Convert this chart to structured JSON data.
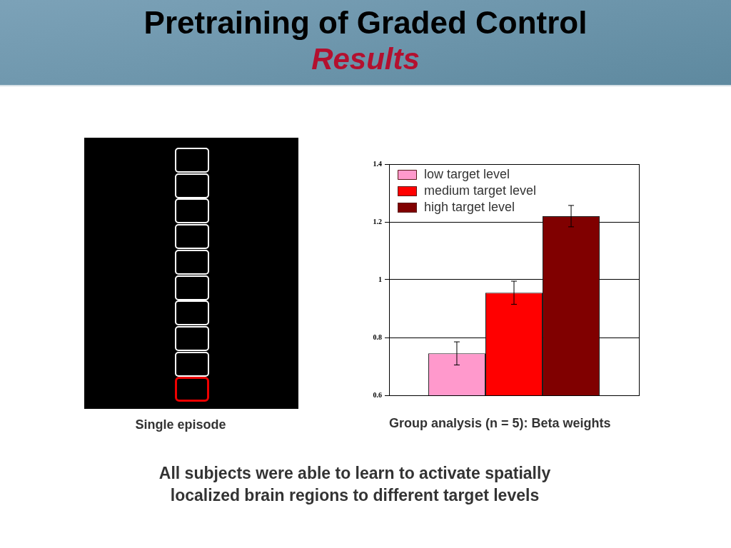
{
  "chart_data": {
    "type": "bar",
    "title": "Pretraining of Graded Control",
    "subtitle": "Results",
    "xlabel": "Group analysis (n = 5): Beta weights",
    "categories": [
      null
    ],
    "series": [
      {
        "name": "low target level",
        "color": "#ff99cc",
        "values": [
          0.745
        ],
        "errors": [
          0.04
        ]
      },
      {
        "name": "medium target level",
        "color": "#ff0000",
        "values": [
          0.955
        ],
        "errors": [
          0.04
        ]
      },
      {
        "name": "high target level",
        "color": "#800000",
        "values": [
          1.22
        ],
        "errors": [
          0.037
        ]
      }
    ],
    "ylim": [
      0.6,
      1.4
    ],
    "yticks": [
      0.6,
      0.8,
      1,
      1.2,
      1.4
    ],
    "grid": "y",
    "legend": "top left",
    "annotations": [
      "Single episode",
      "All subjects were able to learn to activate spatially localized brain regions to different target levels"
    ]
  }
}
